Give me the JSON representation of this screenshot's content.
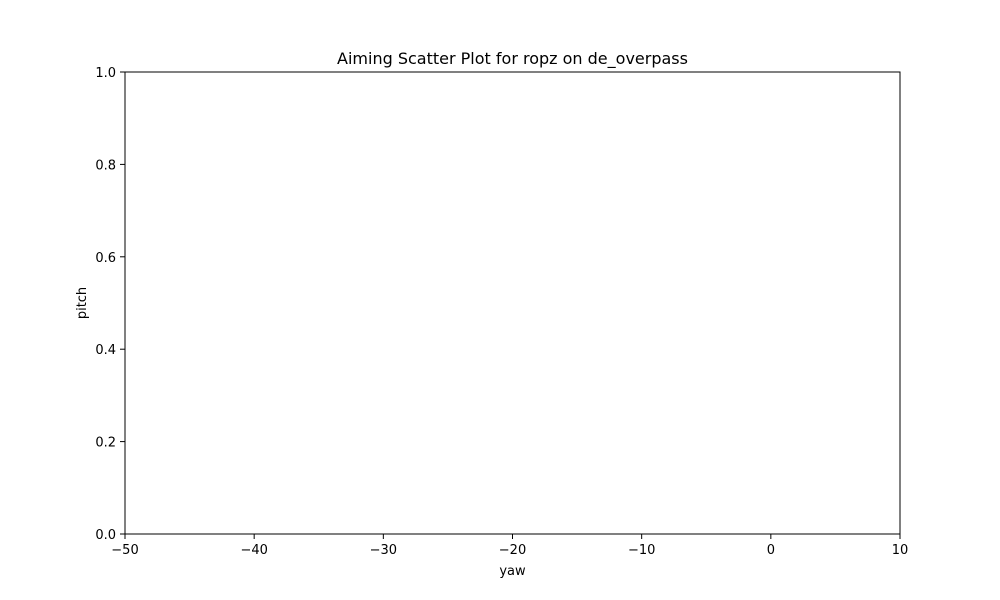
{
  "chart_data": {
    "type": "scatter",
    "title": "Aiming Scatter Plot for ropz on de_overpass",
    "xlabel": "yaw",
    "ylabel": "pitch",
    "xlim": [
      -50,
      10
    ],
    "ylim": [
      0,
      1
    ],
    "x_ticks": [
      {
        "value": -50,
        "label": "−50"
      },
      {
        "value": -40,
        "label": "−40"
      },
      {
        "value": -30,
        "label": "−30"
      },
      {
        "value": -20,
        "label": "−20"
      },
      {
        "value": -10,
        "label": "−10"
      },
      {
        "value": 0,
        "label": "0"
      },
      {
        "value": 10,
        "label": "10"
      }
    ],
    "y_ticks": [
      {
        "value": 0,
        "label": "0.0"
      },
      {
        "value": 0.2,
        "label": "0.2"
      },
      {
        "value": 0.4,
        "label": "0.4"
      },
      {
        "value": 0.6,
        "label": "0.6"
      },
      {
        "value": 0.8,
        "label": "0.8"
      },
      {
        "value": 1.0,
        "label": "1.0"
      }
    ],
    "grid": false,
    "legend": "none",
    "points": [],
    "colors": {
      "axis": "#000000",
      "background": "#ffffff",
      "point": "#1f77b4"
    }
  }
}
